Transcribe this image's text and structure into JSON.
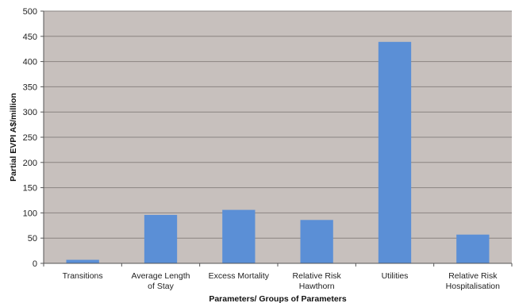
{
  "chart_data": {
    "type": "bar",
    "categories": [
      [
        "Transitions"
      ],
      [
        "Average Length",
        "of Stay"
      ],
      [
        "Excess Mortality"
      ],
      [
        "Relative Risk",
        "Hawthorn"
      ],
      [
        "Utilities"
      ],
      [
        "Relative Risk",
        "Hospitalisation"
      ]
    ],
    "values": [
      7,
      96,
      106,
      86,
      439,
      57
    ],
    "xlabel": "Parameters/ Groups of Parameters",
    "ylabel": "Partial EVPI A$/million",
    "ylim": [
      0,
      500
    ],
    "yticks": [
      0,
      50,
      100,
      150,
      200,
      250,
      300,
      350,
      400,
      450,
      500
    ],
    "grid": true,
    "legend": "none",
    "colors": {
      "bar": "#5b8fd6",
      "plot_background": "#c7c0bd",
      "grid": "#8a8482"
    }
  }
}
